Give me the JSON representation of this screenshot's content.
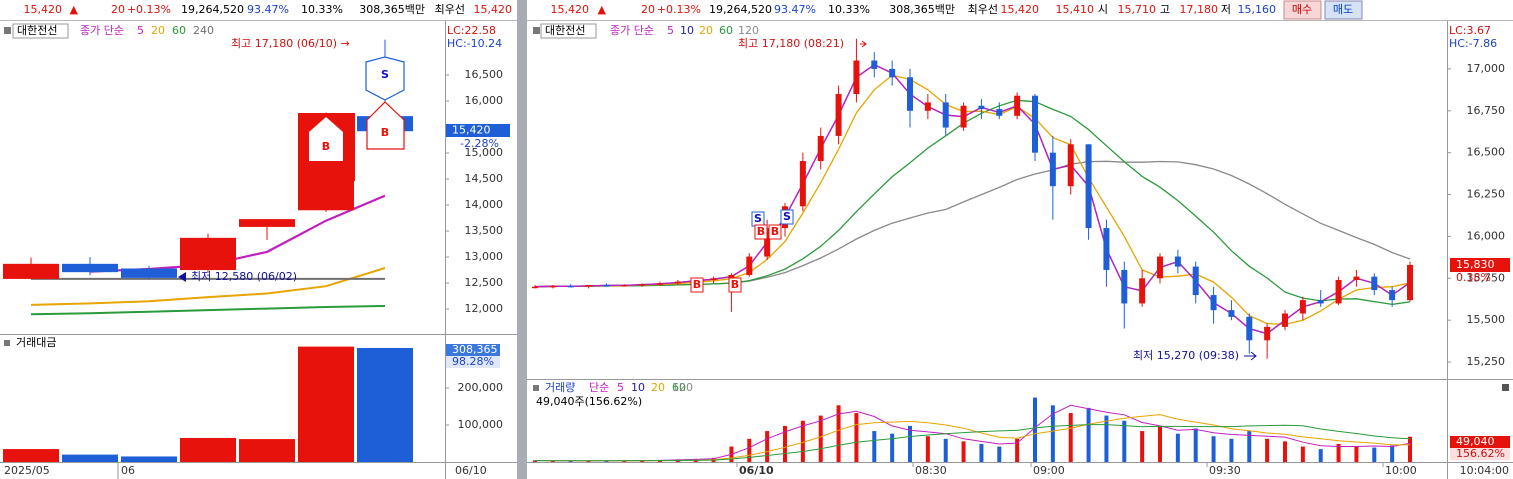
{
  "header": {
    "cells": [
      "15,420",
      "▲",
      "20",
      "+0.13%",
      "19,264,520",
      "93.47%",
      "10.33%",
      "308,365백만",
      "최우선",
      "15,420"
    ],
    "extra": [
      "15,410",
      "시",
      "15,710",
      "고",
      "17,180",
      "저",
      "15,160"
    ],
    "buy": "매수",
    "sell": "매도"
  },
  "signals": {
    "buy": "B",
    "sell": "S"
  },
  "up_color": "#e8120c",
  "down_color": "#1e5fd8",
  "daily": {
    "stock": "대한전선",
    "legend_label": "종가 단순",
    "ma_periods": [
      5,
      20,
      60,
      240
    ],
    "ma_colors": [
      "#c21fc2",
      "#e8a400",
      "#2a9a3a",
      "#707070"
    ],
    "high_note": "최고 17,180 (06/10) →",
    "low_note": "최저 12,580 (06/02)",
    "lc": "LC:22.58",
    "hc": "HC:-10.24",
    "price_tag": "15,420",
    "change_tag": "-2.28%",
    "ylim": [
      11540,
      17270
    ],
    "yticks": [
      {
        "value": 12000,
        "label": "12,000"
      },
      {
        "value": 12500,
        "label": "12,500"
      },
      {
        "value": 13000,
        "label": "13,000"
      },
      {
        "value": 13500,
        "label": "13,500"
      },
      {
        "value": 14000,
        "label": "14,000"
      },
      {
        "value": 14500,
        "label": "14,500"
      },
      {
        "value": 15000,
        "label": "15,000"
      },
      {
        "value": 16000,
        "label": "16,000"
      },
      {
        "value": 16500,
        "label": "16,500"
      }
    ],
    "candles": [
      [
        12580,
        12990,
        12580,
        12870
      ],
      [
        12870,
        13000,
        12650,
        12710
      ],
      [
        12780,
        12830,
        12580,
        12600
      ],
      [
        12750,
        13450,
        12700,
        13370
      ],
      [
        13580,
        13730,
        13330,
        13730
      ],
      [
        13900,
        15780,
        13870,
        15400
      ],
      [
        15710,
        17180,
        15160,
        15420
      ]
    ],
    "ma": [
      [
        null,
        12720,
        12770,
        12850,
        13100,
        13700,
        14180
      ],
      [
        12080,
        12110,
        12150,
        12230,
        12300,
        12440,
        12790
      ],
      [
        11900,
        11920,
        11950,
        11980,
        12010,
        12040,
        12060
      ],
      [
        12580,
        12580,
        12580,
        12580,
        12580,
        12580,
        12580
      ]
    ],
    "volume": {
      "title": "거래대금",
      "tag": "308,365",
      "tag_pct": "98.28%",
      "ylim": [
        0,
        338000
      ],
      "yticks": [
        {
          "value": 100000,
          "label": "100,000"
        },
        {
          "value": 200000,
          "label": "200,000"
        }
      ],
      "values": [
        35000,
        20000,
        15000,
        65000,
        62000,
        312000,
        308365
      ]
    },
    "xlabels": [
      "2025/05",
      "06",
      "06/10"
    ]
  },
  "intraday": {
    "stock": "대한전선",
    "legend_label": "종가 단순",
    "ma_periods": [
      5,
      10,
      20,
      60,
      120
    ],
    "ma_colors": [
      "#c21fc2",
      "#1a1aa0",
      "#e8a400",
      "#2a9a3a",
      "#8a8a8a"
    ],
    "high_note": "최고 17,180 (08:21)",
    "low_note": "최저 15,270 (09:38)",
    "lc": "LC:3.67",
    "hc": "HC:-7.86",
    "price_tag": "15,830",
    "change_tag": "0.38%",
    "ylim": [
      15155,
      17280
    ],
    "yticks": [
      {
        "value": 15250,
        "label": "15,250"
      },
      {
        "value": 15500,
        "label": "15,500"
      },
      {
        "value": 15750,
        "label": "15,750"
      },
      {
        "value": 16000,
        "label": "16,000"
      },
      {
        "value": 16250,
        "label": "16,250"
      },
      {
        "value": 16500,
        "label": "16,500"
      },
      {
        "value": 16750,
        "label": "16,750"
      },
      {
        "value": 17000,
        "label": "17,000"
      }
    ],
    "candles": [
      [
        15700,
        15710,
        15690,
        15700
      ],
      [
        15700,
        15710,
        15690,
        15705
      ],
      [
        15705,
        15715,
        15695,
        15700
      ],
      [
        15700,
        15710,
        15690,
        15710
      ],
      [
        15710,
        15720,
        15700,
        15705
      ],
      [
        15705,
        15715,
        15700,
        15710
      ],
      [
        15710,
        15720,
        15700,
        15715
      ],
      [
        15715,
        15730,
        15705,
        15720
      ],
      [
        15720,
        15740,
        15710,
        15730
      ],
      [
        15730,
        15750,
        15720,
        15740
      ],
      [
        15740,
        15760,
        15720,
        15750
      ],
      [
        15710,
        15780,
        15550,
        15770
      ],
      [
        15770,
        15900,
        15760,
        15880
      ],
      [
        15880,
        16100,
        15860,
        16050
      ],
      [
        16050,
        16200,
        16000,
        16180
      ],
      [
        16180,
        16500,
        16150,
        16450
      ],
      [
        16450,
        16650,
        16400,
        16600
      ],
      [
        16600,
        16900,
        16550,
        16850
      ],
      [
        16850,
        17180,
        16800,
        17050
      ],
      [
        17050,
        17100,
        16950,
        17000
      ],
      [
        17000,
        17050,
        16900,
        16950
      ],
      [
        16950,
        17000,
        16650,
        16750
      ],
      [
        16750,
        16850,
        16700,
        16800
      ],
      [
        16800,
        16850,
        16600,
        16650
      ],
      [
        16650,
        16800,
        16630,
        16780
      ],
      [
        16780,
        16820,
        16700,
        16760
      ],
      [
        16760,
        16800,
        16700,
        16720
      ],
      [
        16720,
        16860,
        16700,
        16840
      ],
      [
        16840,
        16850,
        16450,
        16500
      ],
      [
        16500,
        16600,
        16100,
        16300
      ],
      [
        16300,
        16580,
        16250,
        16550
      ],
      [
        16550,
        16550,
        15980,
        16050
      ],
      [
        16050,
        16100,
        15700,
        15800
      ],
      [
        15800,
        15850,
        15450,
        15600
      ],
      [
        15600,
        15800,
        15580,
        15750
      ],
      [
        15750,
        15900,
        15720,
        15880
      ],
      [
        15880,
        15920,
        15780,
        15820
      ],
      [
        15820,
        15850,
        15600,
        15650
      ],
      [
        15650,
        15700,
        15480,
        15560
      ],
      [
        15560,
        15620,
        15500,
        15520
      ],
      [
        15520,
        15540,
        15300,
        15380
      ],
      [
        15380,
        15480,
        15270,
        15460
      ],
      [
        15460,
        15560,
        15440,
        15540
      ],
      [
        15540,
        15640,
        15500,
        15620
      ],
      [
        15620,
        15680,
        15580,
        15600
      ],
      [
        15600,
        15760,
        15590,
        15740
      ],
      [
        15740,
        15800,
        15700,
        15760
      ],
      [
        15760,
        15780,
        15650,
        15680
      ],
      [
        15680,
        15700,
        15580,
        15620
      ],
      [
        15620,
        15850,
        15610,
        15830
      ]
    ],
    "volume": {
      "title": "거래량",
      "legend_label": "단순",
      "note": "49,040주(156.62%)",
      "tag": "49,040",
      "tag_pct": "156.62%",
      "ylim": [
        0,
        130000
      ],
      "values": [
        3000,
        2000,
        2500,
        2000,
        3000,
        2500,
        3000,
        4000,
        5000,
        6000,
        8000,
        30000,
        45000,
        60000,
        70000,
        80000,
        90000,
        110000,
        95000,
        60000,
        55000,
        70000,
        50000,
        45000,
        40000,
        35000,
        30000,
        45000,
        125000,
        110000,
        95000,
        105000,
        90000,
        80000,
        60000,
        70000,
        55000,
        65000,
        50000,
        45000,
        60000,
        45000,
        40000,
        30000,
        25000,
        35000,
        30000,
        28000,
        32000,
        49040
      ]
    },
    "xlabels": [
      "06/10",
      "08:30",
      "09:00",
      "09:30",
      "10:00"
    ],
    "clock": "10:04:00"
  }
}
